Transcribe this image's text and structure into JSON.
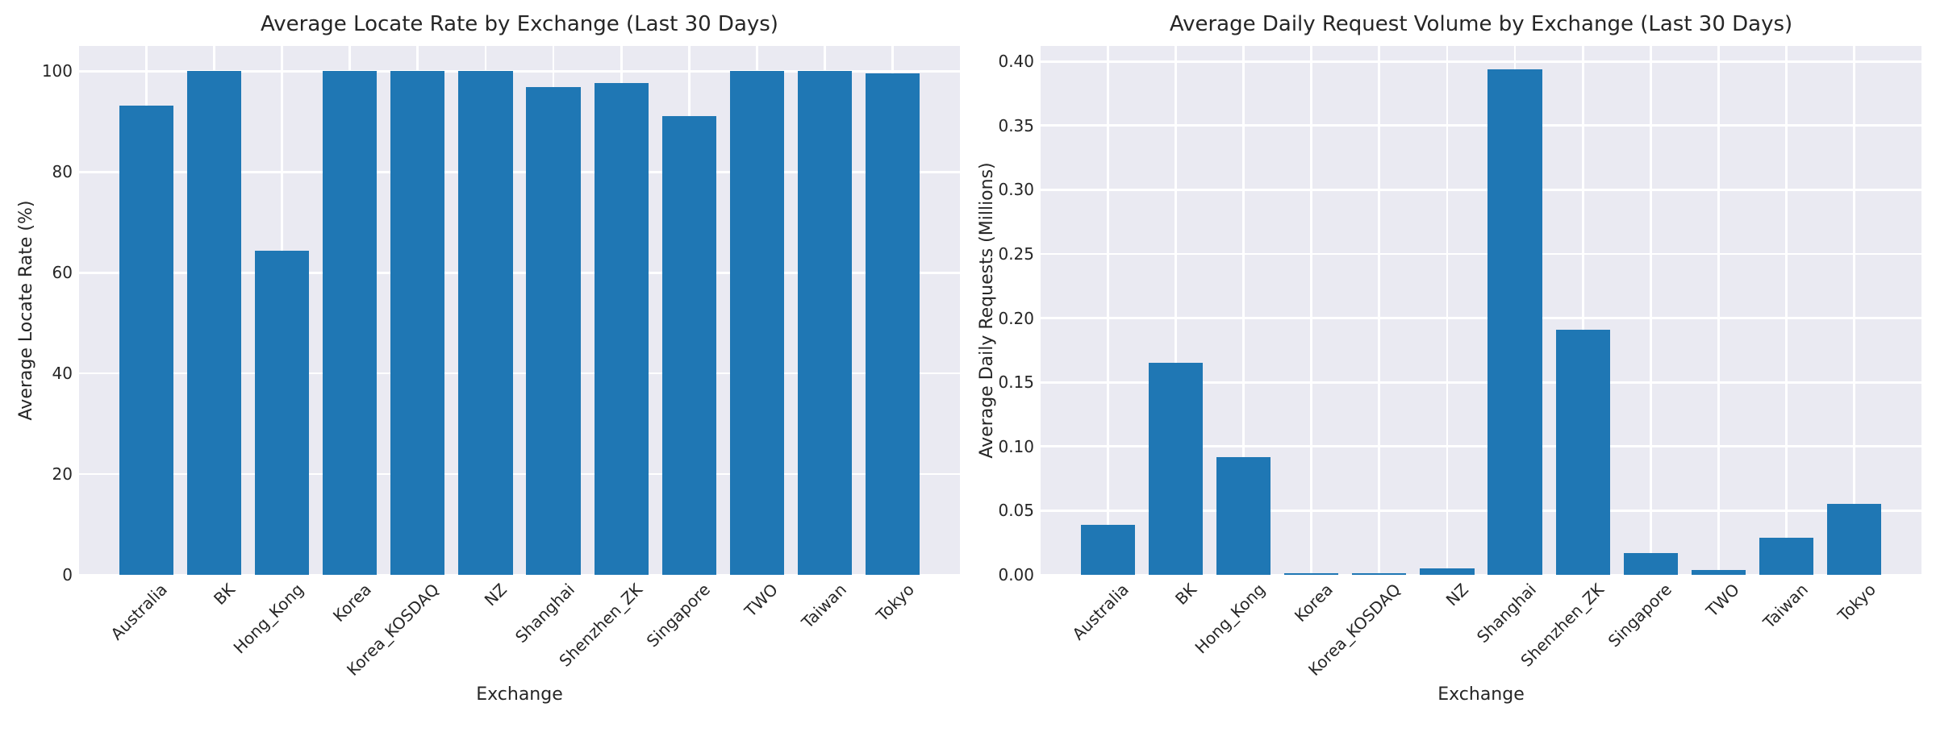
{
  "style": {
    "bar_color": "#1f77b4",
    "plot_background": "#eaeaf2",
    "grid_color": "#ffffff",
    "text_color": "#262626",
    "figure_background": "#ffffff"
  },
  "chart_data": [
    {
      "type": "bar",
      "title": "Average Locate Rate by Exchange (Last 30 Days)",
      "xlabel": "Exchange",
      "ylabel": "Average Locate Rate (%)",
      "categories": [
        "Australia",
        "BK",
        "Hong_Kong",
        "Korea",
        "Korea_KOSDAQ",
        "NZ",
        "Shanghai",
        "Shenzhen_ZK",
        "Singapore",
        "TWO",
        "Taiwan",
        "Tokyo"
      ],
      "values": [
        93.2,
        100,
        64.4,
        100,
        100,
        100,
        96.8,
        97.6,
        91.0,
        100,
        100,
        99.5
      ],
      "ylim": [
        0,
        105
      ],
      "yticks": [
        0,
        20,
        40,
        60,
        80,
        100
      ],
      "ytick_labels": [
        "0",
        "20",
        "40",
        "60",
        "80",
        "100"
      ],
      "grid": true,
      "legend": "none",
      "bar_width_fraction": 0.8,
      "x_tick_rotation_deg": 45
    },
    {
      "type": "bar",
      "title": "Average Daily Request Volume by Exchange (Last 30 Days)",
      "xlabel": "Exchange",
      "ylabel": "Average Daily Requests (Millions)",
      "categories": [
        "Australia",
        "BK",
        "Hong_Kong",
        "Korea",
        "Korea_KOSDAQ",
        "NZ",
        "Shanghai",
        "Shenzhen_ZK",
        "Singapore",
        "TWO",
        "Taiwan",
        "Tokyo"
      ],
      "values": [
        0.039,
        0.165,
        0.092,
        0.001,
        0.001,
        0.005,
        0.394,
        0.191,
        0.017,
        0.004,
        0.029,
        0.055
      ],
      "ylim": [
        0,
        0.412
      ],
      "yticks": [
        0,
        0.05,
        0.1,
        0.15,
        0.2,
        0.25,
        0.3,
        0.35,
        0.4
      ],
      "ytick_labels": [
        "0.00",
        "0.05",
        "0.10",
        "0.15",
        "0.20",
        "0.25",
        "0.30",
        "0.35",
        "0.40"
      ],
      "grid": true,
      "legend": "none",
      "bar_width_fraction": 0.8,
      "x_tick_rotation_deg": 45
    }
  ]
}
